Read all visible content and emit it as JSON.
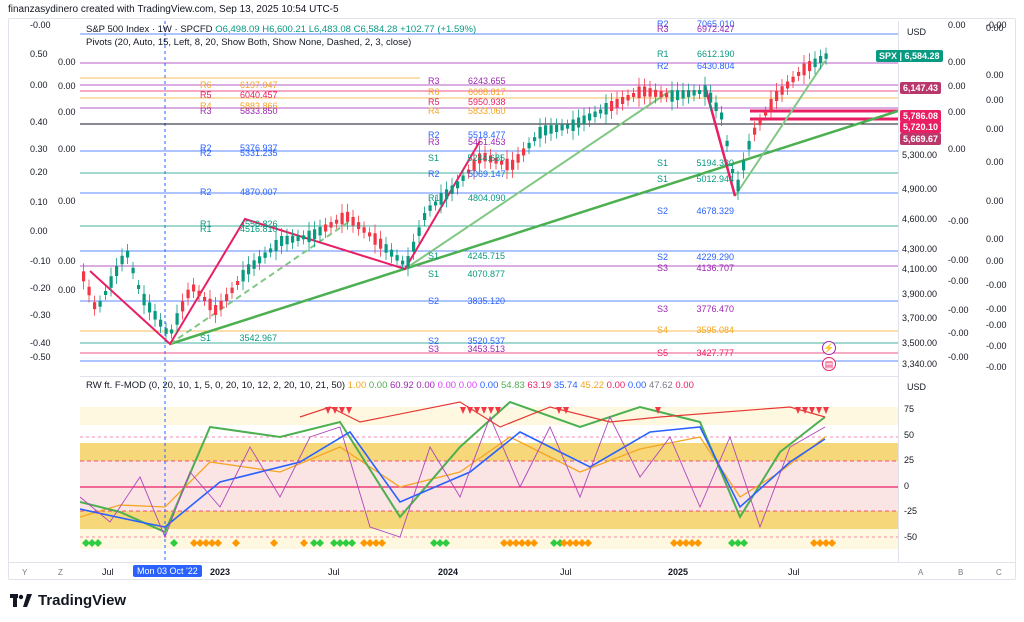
{
  "header": {
    "credit": "finanzasydinero created with TradingView.com, Sep 13, 2025 10:54 UTC-5"
  },
  "legend": {
    "symbol": "S&P 500 Index · 1W · SPCFD",
    "open": "O6,498.09",
    "high": "H6,600.21",
    "low": "L6,483.08",
    "close": "C6,584.28",
    "change": "+102.77 (+1.59%)",
    "pivots": "Pivots (20, Auto, 15, Left, 8, 20, Show Both, Show None, Dashed, 2, 3, close)"
  },
  "osc_legend": {
    "title": "RW ft. F-MOD (0, 20, 10, 1, 5, 0, 20, 10, 12, 2, 20, 10, 21, 50)",
    "values": [
      {
        "v": "1.00",
        "c": "#f5a623"
      },
      {
        "v": "0.00",
        "c": "#4caf50"
      },
      {
        "v": "60.92",
        "c": "#9c27b0"
      },
      {
        "v": "0.00",
        "c": "#9c27b0"
      },
      {
        "v": "0.00",
        "c": "#e040fb"
      },
      {
        "v": "0.00",
        "c": "#e040fb"
      },
      {
        "v": "0.00",
        "c": "#2962ff"
      },
      {
        "v": "54.83",
        "c": "#4caf50"
      },
      {
        "v": "63.19",
        "c": "#e91e63"
      },
      {
        "v": "35.74",
        "c": "#2962ff"
      },
      {
        "v": "45.22",
        "c": "#f5a623"
      },
      {
        "v": "0.00",
        "c": "#e91e63"
      },
      {
        "v": "0.00",
        "c": "#2962ff"
      },
      {
        "v": "47.62",
        "c": "#787b86"
      },
      {
        "v": "0.00",
        "c": "#e91e63"
      }
    ]
  },
  "currency": "USD",
  "price_tags": [
    {
      "label": "SPX",
      "value": "6,584.28",
      "color": "#089981"
    },
    {
      "value": "6,147.43",
      "color": "#b8386b"
    },
    {
      "value": "5,786.08",
      "color": "#e91e63"
    },
    {
      "value": "5,720.10",
      "color": "#e91e63"
    },
    {
      "value": "5,669.67",
      "color": "#b8386b"
    }
  ],
  "price_axis": [
    "5,300.00",
    "4,900.00",
    "4,600.00",
    "4,300.00",
    "4,100.00",
    "3,900.00",
    "3,700.00",
    "3,500.00",
    "3,340.00"
  ],
  "right_axis": [
    "0.00",
    "0.00",
    "0.00",
    "0.00",
    "0.00",
    "0.00",
    "0.00",
    "0.00",
    "-0.00",
    "-0.00",
    "-0.00",
    "-0.00",
    "-0.00",
    "-0.00"
  ],
  "right_axis2": [
    "0.00",
    "0.00",
    "0.00",
    "0.00",
    "0.00",
    "-0.00",
    "-0.00",
    "-0.00",
    "-0.00",
    "-0.00",
    "-0.00"
  ],
  "left_axis": [
    "0.50",
    "0.00",
    "0.40",
    "0.30",
    "0.20",
    "0.10",
    "0.00",
    "-0.10",
    "-0.20",
    "-0.30",
    "-0.40",
    "-0.50",
    "-0.00"
  ],
  "left_axis2": [
    "0.00",
    "0.00",
    "0.00",
    "0.00",
    "0.00",
    "0.00",
    "0.00"
  ],
  "osc_axis": [
    "75",
    "50",
    "25",
    "0",
    "-25",
    "-50"
  ],
  "pivot_labels": [
    {
      "n": "R6",
      "v": "6197.047",
      "c": "#f5a623"
    },
    {
      "n": "R5",
      "v": "6040.457",
      "c": "#e91e63"
    },
    {
      "n": "R4",
      "v": "5883.866",
      "c": "#f5a623"
    },
    {
      "n": "R3",
      "v": "5833.850",
      "c": "#9c27b0"
    },
    {
      "n": "R2",
      "v": "5376.937",
      "c": "#2962ff"
    },
    {
      "n": "R2",
      "v": "5331.235",
      "c": "#2962ff"
    },
    {
      "n": "R2",
      "v": "4870.007",
      "c": "#2962ff"
    },
    {
      "n": "R1",
      "v": "4556.826",
      "c": "#089981"
    },
    {
      "n": "R1",
      "v": "4516.810",
      "c": "#089981"
    },
    {
      "n": "S1",
      "v": "3542.967",
      "c": "#089981"
    },
    {
      "n": "R3",
      "v": "6243.655",
      "c": "#9c27b0"
    },
    {
      "n": "R6",
      "v": "6068.817",
      "c": "#f5a623"
    },
    {
      "n": "R5",
      "v": "5950.938",
      "c": "#e91e63"
    },
    {
      "n": "R4",
      "v": "5833.060",
      "c": "#f5a623"
    },
    {
      "n": "R2",
      "v": "5518.477",
      "c": "#2962ff"
    },
    {
      "n": "R3",
      "v": "5451.453",
      "c": "#9c27b0"
    },
    {
      "n": "S1",
      "v": "5244.685",
      "c": "#089981"
    },
    {
      "n": "R2",
      "v": "5069.147",
      "c": "#2962ff"
    },
    {
      "n": "R1",
      "v": "4804.090",
      "c": "#089981"
    },
    {
      "n": "S1",
      "v": "4245.715",
      "c": "#089981"
    },
    {
      "n": "S1",
      "v": "4070.877",
      "c": "#089981"
    },
    {
      "n": "S2",
      "v": "3835.120",
      "c": "#2962ff"
    },
    {
      "n": "S2",
      "v": "3520.537",
      "c": "#2962ff"
    },
    {
      "n": "S3",
      "v": "3453.513",
      "c": "#9c27b0"
    },
    {
      "n": "R2",
      "v": "7065.010",
      "c": "#2962ff"
    },
    {
      "n": "R3",
      "v": "6972.427",
      "c": "#9c27b0"
    },
    {
      "n": "R1",
      "v": "6612.190",
      "c": "#089981"
    },
    {
      "n": "R2",
      "v": "6430.804",
      "c": "#2962ff"
    },
    {
      "n": "S1",
      "v": "5194.330",
      "c": "#089981"
    },
    {
      "n": "S1",
      "v": "5012.944",
      "c": "#089981"
    },
    {
      "n": "S2",
      "v": "4678.329",
      "c": "#2962ff"
    },
    {
      "n": "S2",
      "v": "4229.290",
      "c": "#2962ff"
    },
    {
      "n": "S3",
      "v": "4136.707",
      "c": "#9c27b0"
    },
    {
      "n": "S3",
      "v": "3776.470",
      "c": "#9c27b0"
    },
    {
      "n": "S4",
      "v": "3595.084",
      "c": "#f5a623"
    },
    {
      "n": "S5",
      "v": "3427.777",
      "c": "#e91e63"
    }
  ],
  "xaxis": {
    "labels": [
      "Jul",
      "2023",
      "Jul",
      "2024",
      "Jul",
      "2025",
      "Jul"
    ],
    "selected": "Mon 03 Oct '22"
  },
  "corners": {
    "y": "Y",
    "z": "Z",
    "a": "A",
    "b": "B",
    "c": "C"
  },
  "footer": {
    "brand": "TradingView"
  }
}
